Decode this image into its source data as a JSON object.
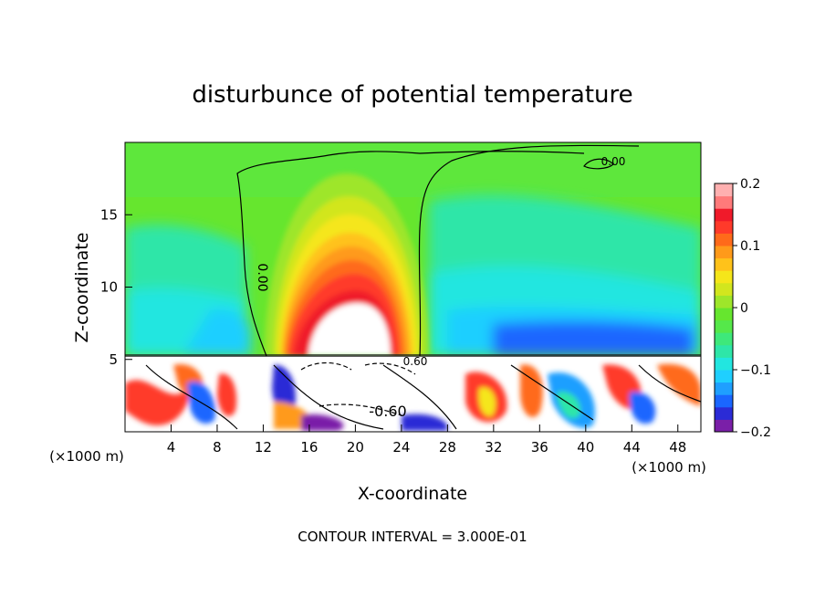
{
  "chart_data": {
    "type": "heatmap",
    "title": "disturbunce of potential temperature",
    "xlabel": "X-coordinate",
    "ylabel": "Z-coordinate",
    "x_unit_label": "(×1000 m)",
    "x_unit_label_right": "(×1000 m)",
    "xlim": [
      0,
      50
    ],
    "ylim": [
      0,
      20
    ],
    "x_ticks": [
      "4",
      "8",
      "12",
      "16",
      "20",
      "24",
      "28",
      "32",
      "36",
      "40",
      "44",
      "48"
    ],
    "y_ticks": [
      "5",
      "10",
      "15"
    ],
    "colorbar": {
      "range": [
        -0.2,
        0.2
      ],
      "tick_labels": [
        "0.2",
        "0.1",
        "0",
        "−0.1",
        "−0.2"
      ],
      "colors": [
        "#7a1fa8",
        "#2b2bd6",
        "#1a66ff",
        "#1f9fff",
        "#1fcfff",
        "#22e6e0",
        "#2ee6a8",
        "#3ee87a",
        "#55e84a",
        "#66e62e",
        "#9ee62a",
        "#d2e61e",
        "#f5e61a",
        "#ffc21a",
        "#ff9a1a",
        "#ff6a1a",
        "#ff3a2a",
        "#f01a2a",
        "#ff7a7a",
        "#ffb0b0"
      ]
    },
    "contour_labels": [
      "0.00",
      "0.00",
      "-0.60",
      "0.60"
    ],
    "footer": "CONTOUR INTERVAL = 3.000E-01"
  }
}
